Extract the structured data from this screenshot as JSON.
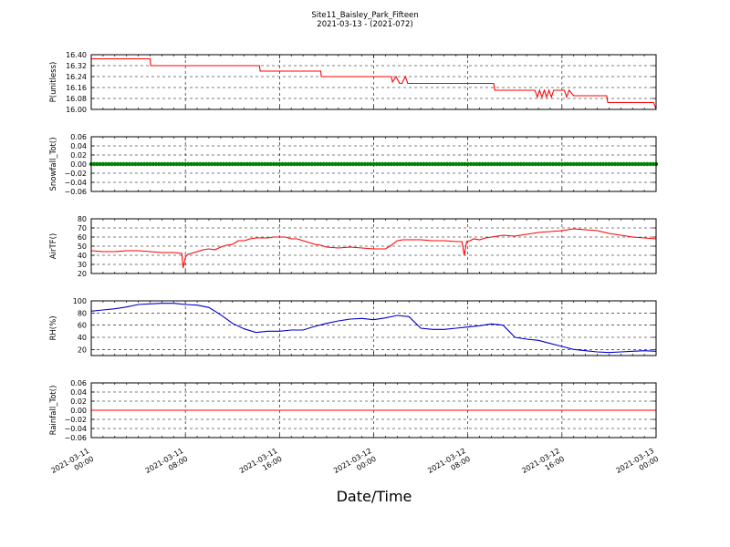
{
  "title_line1": "Site11_Baisley_Park_Fifteen",
  "title_line2": "2021-03-13 - (2021-072)",
  "xlabel": "Date/Time",
  "x_ticks": [
    {
      "line1": "2021-03-11",
      "line2": "00:00"
    },
    {
      "line1": "2021-03-11",
      "line2": "08:00"
    },
    {
      "line1": "2021-03-11",
      "line2": "16:00"
    },
    {
      "line1": "2021-03-12",
      "line2": "00:00"
    },
    {
      "line1": "2021-03-12",
      "line2": "08:00"
    },
    {
      "line1": "2021-03-12",
      "line2": "16:00"
    },
    {
      "line1": "2021-03-13",
      "line2": "00:00"
    }
  ],
  "chart_data": [
    {
      "type": "line",
      "ylabel": "P(unitless)",
      "ylim": [
        16.0,
        16.4
      ],
      "yticks": [
        "16.40",
        "16.32",
        "16.24",
        "16.16",
        "16.08",
        "16.00"
      ],
      "ytick_values": [
        16.4,
        16.32,
        16.24,
        16.16,
        16.08,
        16.0
      ],
      "grid": true,
      "series": [
        {
          "color": "#ff0000",
          "x": [
            0,
            5,
            5.05,
            14.3,
            14.35,
            19.5,
            19.55,
            25.5,
            25.6,
            25.9,
            26.2,
            26.4,
            26.7,
            26.9,
            27.2,
            27.4,
            34.2,
            34.3,
            37.7,
            37.9,
            38.1,
            38.3,
            38.5,
            38.7,
            38.9,
            39.1,
            39.3,
            40.2,
            40.4,
            40.6,
            41.0,
            43.8,
            43.9,
            47.6,
            47.8,
            48.0
          ],
          "y": [
            16.37,
            16.37,
            16.32,
            16.32,
            16.28,
            16.28,
            16.24,
            16.24,
            16.2,
            16.24,
            16.19,
            16.19,
            16.24,
            16.19,
            16.19,
            16.19,
            16.19,
            16.14,
            16.14,
            16.09,
            16.14,
            16.09,
            16.14,
            16.09,
            16.14,
            16.09,
            16.14,
            16.14,
            16.09,
            16.14,
            16.1,
            16.1,
            16.05,
            16.05,
            16.05,
            16.0
          ]
        }
      ]
    },
    {
      "type": "scatter",
      "ylabel": "Snowfall_Tot()",
      "ylim": [
        -0.06,
        0.06
      ],
      "yticks": [
        "0.06",
        "0.04",
        "0.02",
        "0.00",
        "−0.02",
        "−0.04",
        "−0.06"
      ],
      "ytick_values": [
        0.06,
        0.04,
        0.02,
        0.0,
        -0.02,
        -0.04,
        -0.06
      ],
      "grid": true,
      "series": [
        {
          "color": "#008000",
          "x_start": 0,
          "x_end": 48,
          "x_step": 0.25,
          "constant_y": 0.0
        }
      ]
    },
    {
      "type": "line",
      "ylabel": "AirTF()",
      "ylim": [
        20,
        80
      ],
      "yticks": [
        "80",
        "70",
        "60",
        "50",
        "40",
        "30",
        "20"
      ],
      "ytick_values": [
        80,
        70,
        60,
        50,
        40,
        30,
        20
      ],
      "grid": true,
      "series": [
        {
          "color": "#ff0000",
          "x": [
            0,
            1,
            2,
            3,
            4,
            5,
            6,
            7,
            7.7,
            7.8,
            8.0,
            8.2,
            8.5,
            9,
            9.5,
            10,
            10.5,
            11,
            11.5,
            12,
            12.5,
            13,
            13.5,
            14,
            14.5,
            15,
            15.5,
            16,
            16.5,
            17,
            17.5,
            18,
            18.5,
            19,
            19.5,
            20,
            21,
            22,
            23,
            24,
            25,
            25.5,
            26,
            26.5,
            27,
            28,
            29,
            30,
            31,
            31.5,
            31.7,
            31.9,
            32.2,
            32.5,
            33,
            33.5,
            34,
            35,
            36,
            37,
            38,
            39,
            40,
            41,
            42,
            43,
            44,
            45,
            46,
            47,
            48
          ],
          "y": [
            45,
            44,
            44,
            45,
            45,
            44,
            43,
            43,
            42,
            26,
            38,
            41,
            42,
            44,
            46,
            47,
            46,
            49,
            51,
            52,
            56,
            56,
            58,
            59,
            59,
            59,
            60,
            60,
            60,
            58,
            58,
            56,
            54,
            52,
            51,
            49,
            48,
            49,
            48,
            47,
            47,
            51,
            56,
            57,
            57,
            57,
            56,
            56,
            55,
            55,
            40,
            55,
            56,
            58,
            57,
            59,
            60,
            62,
            61,
            63,
            65,
            66,
            67,
            69,
            68,
            67,
            64,
            62,
            60,
            59,
            58
          ]
        }
      ]
    },
    {
      "type": "line",
      "ylabel": "RH(%)",
      "ylim": [
        10,
        100
      ],
      "yticks": [
        "100",
        "80",
        "60",
        "40",
        "20"
      ],
      "ytick_values": [
        100,
        80,
        60,
        40,
        20
      ],
      "grid": true,
      "series": [
        {
          "color": "#0000cc",
          "x": [
            0,
            1,
            2,
            3,
            4,
            5,
            6,
            7,
            7.5,
            8,
            9,
            10,
            11,
            12,
            13,
            14,
            15,
            16,
            17,
            18,
            19,
            20,
            21,
            22,
            23,
            24,
            25,
            26,
            27,
            28,
            29,
            30,
            31,
            32,
            33,
            34,
            35,
            36,
            37,
            38,
            39,
            40,
            41,
            42,
            43,
            44,
            45,
            46,
            47,
            48
          ],
          "y": [
            83,
            85,
            87,
            90,
            94,
            95,
            96,
            96,
            95,
            94,
            93,
            89,
            77,
            63,
            54,
            48,
            50,
            50,
            52,
            52,
            58,
            63,
            67,
            70,
            71,
            69,
            72,
            76,
            74,
            55,
            53,
            53,
            55,
            57,
            59,
            62,
            60,
            40,
            37,
            35,
            30,
            25,
            20,
            18,
            16,
            15,
            16,
            17,
            18,
            17
          ]
        }
      ]
    },
    {
      "type": "line",
      "ylabel": "Rainfall_Tot()",
      "ylim": [
        -0.06,
        0.06
      ],
      "yticks": [
        "0.06",
        "0.04",
        "0.02",
        "0.00",
        "−0.02",
        "−0.04",
        "−0.06"
      ],
      "ytick_values": [
        0.06,
        0.04,
        0.02,
        0.0,
        -0.02,
        -0.04,
        -0.06
      ],
      "grid": true,
      "series": [
        {
          "color": "#ff0000",
          "x": [
            0,
            48
          ],
          "y": [
            0.0,
            0.0
          ]
        }
      ]
    }
  ]
}
